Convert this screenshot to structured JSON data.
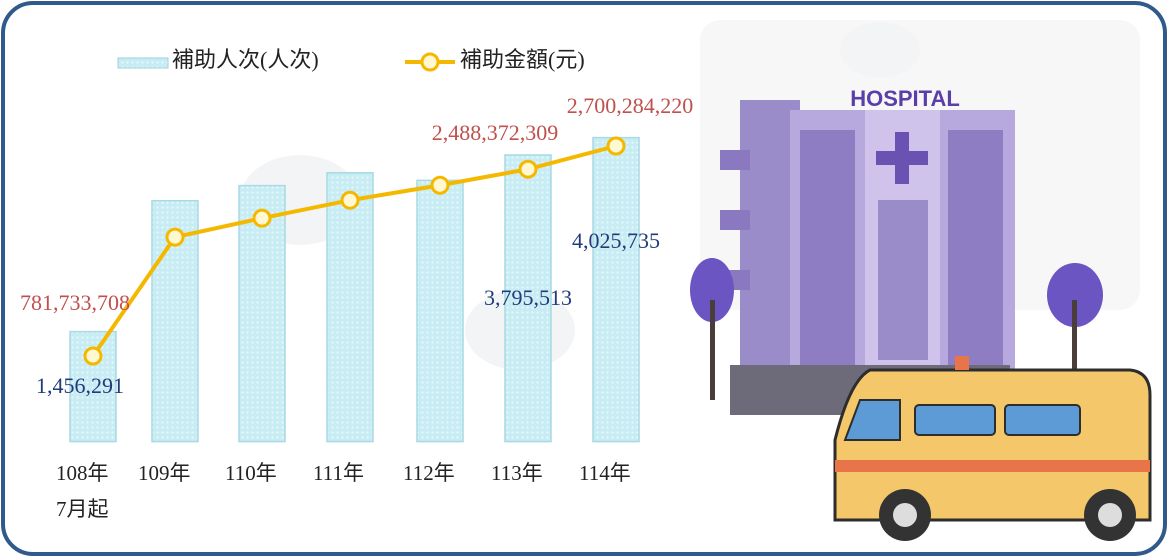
{
  "chart_data": {
    "type": "bar_line",
    "categories": [
      "108年\n7月起",
      "109年",
      "110年",
      "111年",
      "112年",
      "113年",
      "114年"
    ],
    "series": [
      {
        "name": "補助人次(人次)",
        "type": "bar",
        "color": "#bfe6ef",
        "values": [
          1456291,
          3190000,
          3390000,
          3560000,
          3460000,
          3795513,
          4025735
        ],
        "value_labels": [
          "1,456,291",
          null,
          null,
          null,
          null,
          "3,795,513",
          "4,025,735"
        ]
      },
      {
        "name": "補助金額(元)",
        "type": "line",
        "color": "#f5b800",
        "values": [
          781733708,
          1868000000,
          2041000000,
          2205000000,
          2342000000,
          2488372309,
          2700284220
        ],
        "value_labels": [
          "781,733,708",
          null,
          null,
          null,
          null,
          "2,488,372,309",
          "2,700,284,220"
        ]
      }
    ]
  },
  "illustration_sign": "HOSPITAL"
}
